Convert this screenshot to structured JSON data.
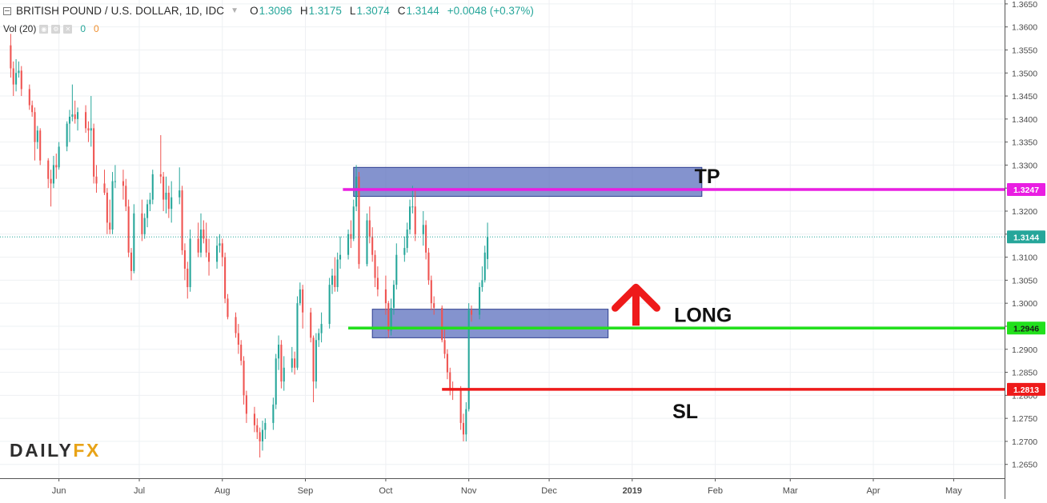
{
  "legend": {
    "symbol": "BRITISH POUND / U.S. DOLLAR, 1D, IDC",
    "open_label": "O",
    "open": "1.3096",
    "high_label": "H",
    "high": "1.3175",
    "low_label": "L",
    "low": "1.3074",
    "close_label": "C",
    "close": "1.3144",
    "change": "+0.0048 (+0.37%)"
  },
  "volume": {
    "label": "Vol (20)",
    "value1": "0",
    "value2": "0"
  },
  "logo": {
    "part1": "DAILY",
    "part2": "FX"
  },
  "colors": {
    "up": "#26a69a",
    "down": "#ef5350",
    "tp": "#e91ee2",
    "entry": "#22e01c",
    "sl": "#ee1a1a",
    "zone_fill": "#5b6fbd",
    "arrow": "#ee1a1a"
  },
  "chart_data": {
    "type": "candlestick",
    "title": "BRITISH POUND / U.S. DOLLAR, 1D, IDC",
    "y_axis_side": "right",
    "ylim": [
      1.262,
      1.3655
    ],
    "y_ticks": [
      "1.2650",
      "1.2700",
      "1.2750",
      "1.2800",
      "1.2850",
      "1.2900",
      "1.2950",
      "1.3000",
      "1.3050",
      "1.3100",
      "1.3150",
      "1.3200",
      "1.3250",
      "1.3300",
      "1.3350",
      "1.3400",
      "1.3450",
      "1.3500",
      "1.3550",
      "1.3600",
      "1.3650"
    ],
    "x_ticks": [
      {
        "date": "2018-06-01",
        "label": "Jun"
      },
      {
        "date": "2018-07-01",
        "label": "Jul"
      },
      {
        "date": "2018-08-01",
        "label": "Aug"
      },
      {
        "date": "2018-09-01",
        "label": "Sep"
      },
      {
        "date": "2018-10-01",
        "label": "Oct"
      },
      {
        "date": "2018-11-01",
        "label": "Nov"
      },
      {
        "date": "2018-12-01",
        "label": "Dec"
      },
      {
        "date": "2019-01-01",
        "label": "2019"
      },
      {
        "date": "2019-02-01",
        "label": "Feb"
      },
      {
        "date": "2019-03-01",
        "label": "Mar"
      },
      {
        "date": "2019-04-01",
        "label": "Apr"
      },
      {
        "date": "2019-05-01",
        "label": "May"
      }
    ],
    "x_range": [
      "2018-05-10",
      "2019-05-20"
    ],
    "grid": true,
    "ohlc": [
      [
        "2018-05-14",
        1.356,
        1.3585,
        1.349,
        1.351
      ],
      [
        "2018-05-15",
        1.351,
        1.3525,
        1.345,
        1.3475
      ],
      [
        "2018-05-16",
        1.3475,
        1.353,
        1.346,
        1.35
      ],
      [
        "2018-05-17",
        1.35,
        1.3525,
        1.349,
        1.3505
      ],
      [
        "2018-05-18",
        1.3505,
        1.3515,
        1.345,
        1.3465
      ],
      [
        "2018-05-21",
        1.3465,
        1.3475,
        1.342,
        1.343
      ],
      [
        "2018-05-22",
        1.343,
        1.344,
        1.3405,
        1.3415
      ],
      [
        "2018-05-23",
        1.3415,
        1.3425,
        1.331,
        1.335
      ],
      [
        "2018-05-24",
        1.335,
        1.3385,
        1.3335,
        1.3375
      ],
      [
        "2018-05-25",
        1.3375,
        1.338,
        1.33,
        1.331
      ],
      [
        "2018-05-28",
        1.331,
        1.3315,
        1.325,
        1.327
      ],
      [
        "2018-05-29",
        1.327,
        1.329,
        1.321,
        1.326
      ],
      [
        "2018-05-30",
        1.326,
        1.332,
        1.325,
        1.33
      ],
      [
        "2018-05-31",
        1.33,
        1.3325,
        1.327,
        1.3295
      ],
      [
        "2018-06-01",
        1.3295,
        1.335,
        1.329,
        1.334
      ],
      [
        "2018-06-04",
        1.334,
        1.3395,
        1.333,
        1.339
      ],
      [
        "2018-06-05",
        1.339,
        1.342,
        1.335,
        1.3405
      ],
      [
        "2018-06-06",
        1.3405,
        1.3475,
        1.3395,
        1.341
      ],
      [
        "2018-06-07",
        1.341,
        1.344,
        1.339,
        1.34
      ],
      [
        "2018-06-08",
        1.34,
        1.3425,
        1.3375,
        1.3415
      ],
      [
        "2018-06-11",
        1.3415,
        1.343,
        1.337,
        1.338
      ],
      [
        "2018-06-12",
        1.338,
        1.3395,
        1.335,
        1.3375
      ],
      [
        "2018-06-13",
        1.3375,
        1.345,
        1.334,
        1.338
      ],
      [
        "2018-06-14",
        1.338,
        1.339,
        1.326,
        1.3275
      ],
      [
        "2018-06-15",
        1.3275,
        1.33,
        1.324,
        1.326
      ],
      [
        "2018-06-18",
        1.326,
        1.329,
        1.3235,
        1.324
      ],
      [
        "2018-06-19",
        1.324,
        1.325,
        1.315,
        1.3175
      ],
      [
        "2018-06-20",
        1.3175,
        1.3225,
        1.315,
        1.316
      ],
      [
        "2018-06-21",
        1.316,
        1.3285,
        1.315,
        1.3265
      ],
      [
        "2018-06-22",
        1.3265,
        1.33,
        1.325,
        1.3265
      ],
      [
        "2018-06-25",
        1.3265,
        1.329,
        1.3225,
        1.3255
      ],
      [
        "2018-06-26",
        1.3255,
        1.327,
        1.32,
        1.321
      ],
      [
        "2018-06-27",
        1.321,
        1.3225,
        1.31,
        1.311
      ],
      [
        "2018-06-28",
        1.311,
        1.312,
        1.305,
        1.307
      ],
      [
        "2018-06-29",
        1.307,
        1.3215,
        1.3065,
        1.3195
      ],
      [
        "2018-07-02",
        1.3195,
        1.3225,
        1.3135,
        1.315
      ],
      [
        "2018-07-03",
        1.315,
        1.3195,
        1.314,
        1.3185
      ],
      [
        "2018-07-04",
        1.3185,
        1.3225,
        1.3165,
        1.3215
      ],
      [
        "2018-07-05",
        1.3215,
        1.324,
        1.32,
        1.3225
      ],
      [
        "2018-07-06",
        1.3225,
        1.329,
        1.3215,
        1.328
      ],
      [
        "2018-07-09",
        1.328,
        1.3365,
        1.326,
        1.3275
      ],
      [
        "2018-07-10",
        1.3275,
        1.3285,
        1.32,
        1.3225
      ],
      [
        "2018-07-11",
        1.3225,
        1.3275,
        1.3195,
        1.324
      ],
      [
        "2018-07-12",
        1.324,
        1.3255,
        1.3185,
        1.3205
      ],
      [
        "2018-07-13",
        1.3205,
        1.3265,
        1.3175,
        1.323
      ],
      [
        "2018-07-16",
        1.323,
        1.3295,
        1.3215,
        1.3245
      ],
      [
        "2018-07-17",
        1.3245,
        1.3255,
        1.3105,
        1.3115
      ],
      [
        "2018-07-18",
        1.3115,
        1.313,
        1.305,
        1.3075
      ],
      [
        "2018-07-19",
        1.3075,
        1.309,
        1.301,
        1.3035
      ],
      [
        "2018-07-20",
        1.3035,
        1.316,
        1.3025,
        1.314
      ],
      [
        "2018-07-23",
        1.314,
        1.3175,
        1.31,
        1.311
      ],
      [
        "2018-07-24",
        1.311,
        1.3195,
        1.31,
        1.316
      ],
      [
        "2018-07-25",
        1.316,
        1.318,
        1.313,
        1.314
      ],
      [
        "2018-07-26",
        1.314,
        1.3175,
        1.31,
        1.311
      ],
      [
        "2018-07-27",
        1.311,
        1.314,
        1.306,
        1.309
      ],
      [
        "2018-07-30",
        1.309,
        1.3145,
        1.3075,
        1.3125
      ],
      [
        "2018-07-31",
        1.3125,
        1.315,
        1.311,
        1.313
      ],
      [
        "2018-08-01",
        1.313,
        1.314,
        1.308,
        1.31
      ],
      [
        "2018-08-02",
        1.31,
        1.311,
        1.3,
        1.301
      ],
      [
        "2018-08-03",
        1.301,
        1.302,
        1.2965,
        1.297
      ],
      [
        "2018-08-06",
        1.297,
        1.298,
        1.2925,
        1.2935
      ],
      [
        "2018-08-07",
        1.2935,
        1.2955,
        1.289,
        1.291
      ],
      [
        "2018-08-08",
        1.291,
        1.292,
        1.2865,
        1.2875
      ],
      [
        "2018-08-09",
        1.2875,
        1.2885,
        1.278,
        1.28
      ],
      [
        "2018-08-10",
        1.28,
        1.281,
        1.274,
        1.276
      ],
      [
        "2018-08-13",
        1.276,
        1.2775,
        1.272,
        1.2735
      ],
      [
        "2018-08-14",
        1.2735,
        1.275,
        1.2705,
        1.272
      ],
      [
        "2018-08-15",
        1.272,
        1.273,
        1.2665,
        1.27
      ],
      [
        "2018-08-16",
        1.27,
        1.2745,
        1.268,
        1.2725
      ],
      [
        "2018-08-17",
        1.2725,
        1.275,
        1.2705,
        1.274
      ],
      [
        "2018-08-20",
        1.274,
        1.2795,
        1.2725,
        1.278
      ],
      [
        "2018-08-21",
        1.278,
        1.289,
        1.277,
        1.288
      ],
      [
        "2018-08-22",
        1.288,
        1.293,
        1.2855,
        1.291
      ],
      [
        "2018-08-23",
        1.291,
        1.292,
        1.2815,
        1.283
      ],
      [
        "2018-08-24",
        1.283,
        1.2885,
        1.281,
        1.286
      ],
      [
        "2018-08-27",
        1.286,
        1.2905,
        1.285,
        1.288
      ],
      [
        "2018-08-28",
        1.288,
        1.2895,
        1.2845,
        1.286
      ],
      [
        "2018-08-29",
        1.286,
        1.3015,
        1.2855,
        1.3
      ],
      [
        "2018-08-30",
        1.3,
        1.3045,
        1.2995,
        1.303
      ],
      [
        "2018-08-31",
        1.303,
        1.304,
        1.2945,
        1.298
      ],
      [
        "2018-09-03",
        1.298,
        1.299,
        1.2915,
        1.2925
      ],
      [
        "2018-09-04",
        1.2925,
        1.293,
        1.2785,
        1.283
      ],
      [
        "2018-09-05",
        1.283,
        1.2935,
        1.2815,
        1.292
      ],
      [
        "2018-09-06",
        1.292,
        1.2945,
        1.2905,
        1.2935
      ],
      [
        "2018-09-07",
        1.2935,
        1.298,
        1.2915,
        1.2955
      ],
      [
        "2018-09-10",
        1.2955,
        1.3055,
        1.2945,
        1.304
      ],
      [
        "2018-09-11",
        1.304,
        1.3075,
        1.302,
        1.306
      ],
      [
        "2018-09-12",
        1.306,
        1.31,
        1.3025,
        1.3035
      ],
      [
        "2018-09-13",
        1.3035,
        1.311,
        1.3025,
        1.3095
      ],
      [
        "2018-09-14",
        1.3095,
        1.3145,
        1.3075,
        1.3105
      ],
      [
        "2018-09-17",
        1.3105,
        1.316,
        1.3095,
        1.315
      ],
      [
        "2018-09-18",
        1.315,
        1.318,
        1.312,
        1.314
      ],
      [
        "2018-09-19",
        1.314,
        1.3225,
        1.3135,
        1.321
      ],
      [
        "2018-09-20",
        1.321,
        1.33,
        1.32,
        1.3275
      ],
      [
        "2018-09-21",
        1.3275,
        1.3285,
        1.3075,
        1.3085
      ],
      [
        "2018-09-24",
        1.3085,
        1.3195,
        1.308,
        1.318
      ],
      [
        "2018-09-25",
        1.318,
        1.321,
        1.313,
        1.3145
      ],
      [
        "2018-09-26",
        1.3145,
        1.3165,
        1.309,
        1.3105
      ],
      [
        "2018-09-27",
        1.3105,
        1.3115,
        1.3035,
        1.3055
      ],
      [
        "2018-09-28",
        1.3055,
        1.308,
        1.3015,
        1.303
      ],
      [
        "2018-10-01",
        1.303,
        1.306,
        1.2975,
        1.3
      ],
      [
        "2018-10-02",
        1.3,
        1.3005,
        1.2925,
        1.294
      ],
      [
        "2018-10-03",
        1.294,
        1.301,
        1.293,
        1.299
      ],
      [
        "2018-10-04",
        1.299,
        1.305,
        1.2975,
        1.304
      ],
      [
        "2018-10-05",
        1.304,
        1.313,
        1.303,
        1.3105
      ],
      [
        "2018-10-08",
        1.3105,
        1.3145,
        1.309,
        1.312
      ],
      [
        "2018-10-09",
        1.312,
        1.3175,
        1.311,
        1.316
      ],
      [
        "2018-10-10",
        1.316,
        1.3225,
        1.315,
        1.321
      ],
      [
        "2018-10-11",
        1.321,
        1.3255,
        1.3195,
        1.321
      ],
      [
        "2018-10-12",
        1.321,
        1.325,
        1.3135,
        1.315
      ],
      [
        "2018-10-15",
        1.315,
        1.32,
        1.3125,
        1.317
      ],
      [
        "2018-10-16",
        1.317,
        1.318,
        1.3095,
        1.311
      ],
      [
        "2018-10-17",
        1.311,
        1.312,
        1.304,
        1.305
      ],
      [
        "2018-10-18",
        1.305,
        1.306,
        1.2985,
        1.3
      ],
      [
        "2018-10-19",
        1.3,
        1.3015,
        1.2975,
        1.299
      ],
      [
        "2018-10-22",
        1.299,
        1.2995,
        1.2915,
        1.292
      ],
      [
        "2018-10-23",
        1.292,
        1.2945,
        1.288,
        1.289
      ],
      [
        "2018-10-24",
        1.289,
        1.29,
        1.2835,
        1.285
      ],
      [
        "2018-10-25",
        1.285,
        1.286,
        1.28,
        1.2815
      ],
      [
        "2018-10-26",
        1.2815,
        1.283,
        1.279,
        1.281
      ],
      [
        "2018-10-29",
        1.281,
        1.282,
        1.2725,
        1.274
      ],
      [
        "2018-10-30",
        1.274,
        1.276,
        1.27,
        1.2715
      ],
      [
        "2018-10-31",
        1.2715,
        1.2785,
        1.27,
        1.277
      ],
      [
        "2018-11-01",
        1.277,
        1.3,
        1.2765,
        1.2985
      ],
      [
        "2018-11-02",
        1.2985,
        1.2995,
        1.296,
        1.2975
      ],
      [
        "2018-11-05",
        1.2975,
        1.3045,
        1.2965,
        1.3035
      ],
      [
        "2018-11-06",
        1.3035,
        1.308,
        1.3025,
        1.305
      ],
      [
        "2018-11-07",
        1.305,
        1.3125,
        1.3045,
        1.311
      ],
      [
        "2018-11-08",
        1.3096,
        1.3175,
        1.3074,
        1.3144
      ]
    ]
  },
  "annotations": {
    "tp": {
      "text": "TP",
      "price": 1.3247,
      "price_label": "1.3247",
      "start": "2018-09-15",
      "end": "2019-05-20"
    },
    "entry": {
      "text": "LONG",
      "price": 1.2946,
      "price_label": "1.2946",
      "start": "2018-09-17",
      "end": "2019-05-20"
    },
    "sl": {
      "text": "SL",
      "price": 1.2813,
      "price_label": "1.2813",
      "start": "2018-10-22",
      "end": "2019-05-20"
    },
    "current_price_label": "1.3144",
    "tp_zone": {
      "from_date": "2018-09-19",
      "to_date": "2019-01-27",
      "low": 1.3232,
      "high": 1.3295
    },
    "entry_zone": {
      "from_date": "2018-09-26",
      "to_date": "2018-12-23",
      "low": 1.2925,
      "high": 1.2987
    }
  }
}
